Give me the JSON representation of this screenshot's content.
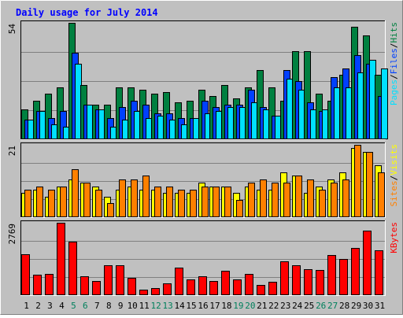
{
  "chart_data": {
    "type": "bar",
    "title": "Daily usage for July 2014",
    "categories": [
      "1",
      "2",
      "3",
      "4",
      "5",
      "6",
      "7",
      "8",
      "9",
      "10",
      "11",
      "12",
      "13",
      "14",
      "15",
      "16",
      "17",
      "18",
      "19",
      "20",
      "21",
      "22",
      "23",
      "24",
      "25",
      "26",
      "27",
      "28",
      "29",
      "30",
      "31"
    ],
    "weekend_days": [
      "5",
      "6",
      "12",
      "13",
      "19",
      "20",
      "26",
      "27"
    ],
    "panels": [
      {
        "ymax_label": "54",
        "ylim": [
          0,
          54
        ],
        "legend": [
          "Pages",
          "/",
          "Files",
          "/",
          "Hits"
        ],
        "series": [
          {
            "name": "Hits",
            "color": "#008040",
            "values": [
              14,
              18,
              21,
              24,
              54,
              25,
              16,
              16,
              24,
              24,
              23,
              21,
              22,
              17,
              18,
              23,
              20,
              25,
              19,
              24,
              32,
              24,
              18,
              41,
              41,
              21,
              18,
              30,
              52,
              48,
              30
            ]
          },
          {
            "name": "Files",
            "color": "#0040ff",
            "values": [
              9,
              13,
              10,
              13,
              40,
              16,
              14,
              10,
              15,
              18,
              16,
              12,
              12,
              10,
              10,
              18,
              15,
              16,
              16,
              23,
              15,
              11,
              32,
              27,
              17,
              13,
              29,
              33,
              39,
              35,
              20
            ]
          },
          {
            "name": "Pages",
            "color": "#00e0ff",
            "values": [
              9,
              13,
              7,
              6,
              35,
              16,
              14,
              6,
              9,
              13,
              10,
              11,
              9,
              7,
              10,
              12,
              13,
              15,
              15,
              17,
              14,
              11,
              28,
              23,
              14,
              14,
              24,
              24,
              31,
              37,
              33
            ]
          }
        ]
      },
      {
        "ymax_label": "21",
        "ylim": [
          0,
          21
        ],
        "legend": [
          "Sites",
          "/",
          "Visits"
        ],
        "series": [
          {
            "name": "Visits",
            "color": "#ffff00",
            "values": [
              7,
              8,
              6,
              9,
              11,
              10,
              9,
              6,
              8,
              9,
              8,
              8,
              7,
              7,
              7,
              10,
              9,
              9,
              7,
              9,
              8,
              8,
              13,
              12,
              7,
              9,
              11,
              13,
              20,
              19,
              15
            ]
          },
          {
            "name": "Sites",
            "color": "#ff8000",
            "values": [
              8,
              9,
              8,
              9,
              14,
              10,
              8,
              4,
              11,
              11,
              12,
              9,
              9,
              8,
              8,
              9,
              9,
              9,
              5,
              10,
              11,
              10,
              10,
              12,
              11,
              8,
              10,
              11,
              21,
              19,
              13
            ]
          }
        ]
      },
      {
        "ymax_label": "2769",
        "ylim": [
          0,
          2769
        ],
        "legend": [
          "KBytes"
        ],
        "series": [
          {
            "name": "KBytes",
            "color": "#ff0000",
            "values": [
              1551,
              777,
              823,
              2769,
              2046,
              732,
              532,
              1137,
              1137,
              664,
              216,
              269,
              464,
              1044,
              617,
              734,
              556,
              939,
              592,
              803,
              387,
              521,
              1285,
              1142,
              986,
              968,
              1531,
              1397,
              1794,
              2468,
              1711
            ]
          }
        ]
      }
    ]
  }
}
